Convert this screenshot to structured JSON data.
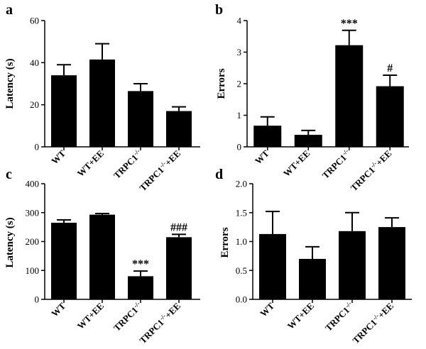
{
  "chart_data": [
    {
      "panel": "a",
      "type": "bar",
      "ylabel": "Latency (s)",
      "categories": [
        "WT",
        "WT+EE",
        "TRPC1",
        "TRPC1+EE"
      ],
      "values": [
        34,
        41.5,
        26.5,
        17
      ],
      "errors": [
        5,
        7.5,
        3.5,
        2
      ],
      "annotations": [
        "",
        "",
        "",
        ""
      ],
      "ylim": [
        0,
        60
      ],
      "yticks": [
        0,
        20,
        40,
        60
      ],
      "tick_labels": [
        "0",
        "20",
        "40",
        "60"
      ]
    },
    {
      "panel": "b",
      "type": "bar",
      "ylabel": "Errors",
      "categories": [
        "WT",
        "WT+EE",
        "TRPC1",
        "TRPC1+EE"
      ],
      "values": [
        0.67,
        0.38,
        3.22,
        1.92
      ],
      "errors": [
        0.28,
        0.14,
        0.47,
        0.35
      ],
      "annotations": [
        "",
        "",
        "***",
        "#"
      ],
      "ylim": [
        0,
        4
      ],
      "yticks": [
        0,
        1,
        2,
        3,
        4
      ],
      "tick_labels": [
        "0",
        "1",
        "2",
        "3",
        "4"
      ]
    },
    {
      "panel": "c",
      "type": "bar",
      "ylabel": "Latency (s)",
      "categories": [
        "WT",
        "WT+EE",
        "TRPC1",
        "TRPC1+EE"
      ],
      "values": [
        265,
        293,
        80,
        215
      ],
      "errors": [
        10,
        4,
        18,
        10
      ],
      "annotations": [
        "",
        "",
        "***",
        "###"
      ],
      "ylim": [
        0,
        400
      ],
      "yticks": [
        0,
        100,
        200,
        300,
        400
      ],
      "tick_labels": [
        "0",
        "100",
        "200",
        "300",
        "400"
      ]
    },
    {
      "panel": "d",
      "type": "bar",
      "ylabel": "Errors",
      "categories": [
        "WT",
        "WT+EE",
        "TRPC1",
        "TRPC1+EE"
      ],
      "values": [
        1.13,
        0.7,
        1.18,
        1.25
      ],
      "errors": [
        0.39,
        0.21,
        0.32,
        0.16
      ],
      "annotations": [
        "",
        "",
        "",
        ""
      ],
      "ylim": [
        0,
        2.0
      ],
      "yticks": [
        0,
        0.5,
        1.0,
        1.5,
        2.0
      ],
      "tick_labels": [
        "0.0",
        "0.5",
        "1.0",
        "1.5",
        "2.0"
      ]
    }
  ],
  "superscript": "-/-"
}
